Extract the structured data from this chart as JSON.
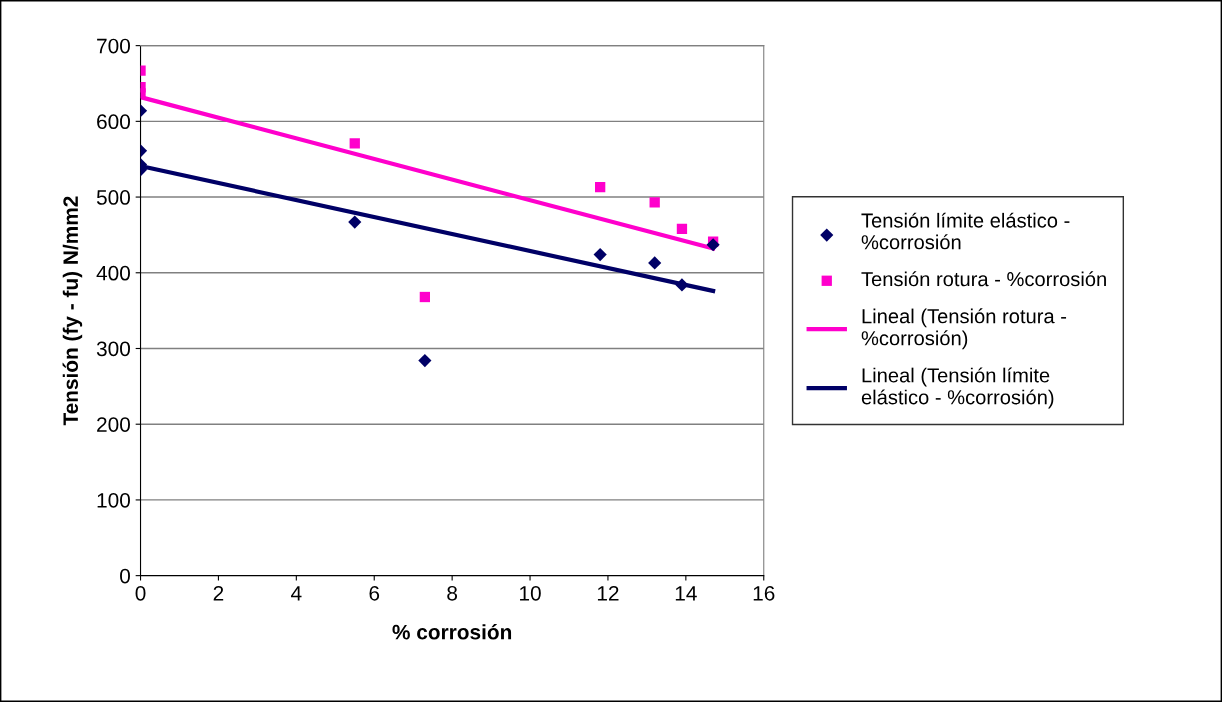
{
  "chart_data": {
    "type": "scatter",
    "xlabel": "% corrosión",
    "ylabel": "Tensión (fy - fu) N/mm2",
    "xlim": [
      0,
      16
    ],
    "xticks": [
      0,
      2,
      4,
      6,
      8,
      10,
      12,
      14,
      16
    ],
    "ylim": [
      0,
      700
    ],
    "yticks": [
      0,
      100,
      200,
      300,
      400,
      500,
      600,
      700
    ],
    "grid": "y",
    "legend": "right",
    "series": [
      {
        "name": "Tensión límite elástico - %corrosión",
        "marker": "diamond",
        "color": "#000066",
        "x": [
          0,
          0,
          0,
          0,
          5.5,
          7.3,
          11.8,
          13.2,
          13.9,
          14.7
        ],
        "values": [
          614,
          561,
          543,
          536,
          467,
          284,
          424,
          413,
          384,
          437
        ]
      },
      {
        "name": "Tensión rotura - %corrosión",
        "marker": "square",
        "color": "#ff00cc",
        "x": [
          0,
          0,
          0,
          5.5,
          7.3,
          11.8,
          13.2,
          13.9,
          14.7
        ],
        "values": [
          667,
          645,
          637,
          571,
          368,
          513,
          493,
          458,
          441
        ]
      },
      {
        "name": "Lineal (Tensión rotura - %corrosión)",
        "type": "line",
        "marker": "none",
        "color": "#ff00cc",
        "x": [
          0,
          14.7
        ],
        "values": [
          632,
          432
        ]
      },
      {
        "name": "Lineal (Tensión límite elástico - %corrosión)",
        "type": "line",
        "marker": "none",
        "color": "#000066",
        "x": [
          0,
          14.7
        ],
        "values": [
          541,
          376
        ]
      }
    ]
  }
}
